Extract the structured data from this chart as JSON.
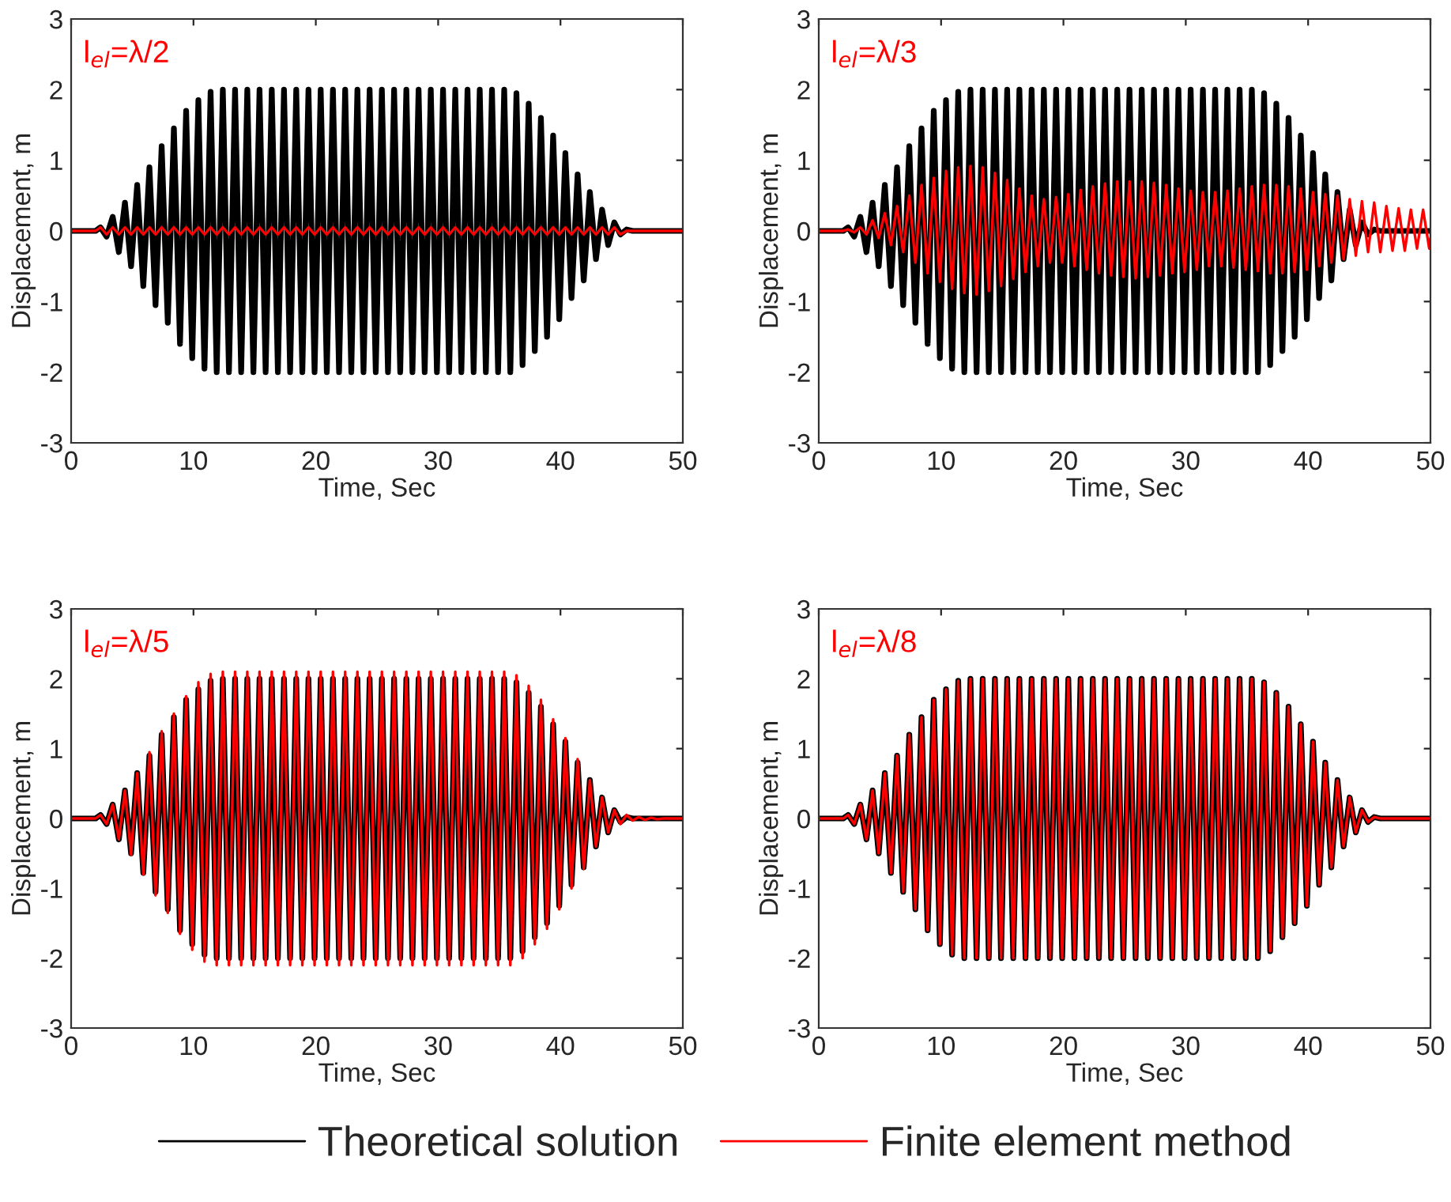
{
  "chart_data": [
    {
      "type": "line",
      "xlabel": "Time, Sec",
      "ylabel": "Displacement, m",
      "annotations": [
        "l$_{el}$=λ/2"
      ],
      "xlim": [
        0,
        50
      ],
      "ylim": [
        -3,
        3
      ],
      "xticks": [
        0,
        10,
        20,
        30,
        40,
        50
      ],
      "yticks": [
        -3,
        -2,
        -1,
        0,
        1,
        2,
        3
      ],
      "grid": false,
      "legend": "bottom",
      "marker": "none",
      "line_style": "solid",
      "x": [
        0,
        2,
        2.4,
        2.9,
        3.4,
        3.9,
        4.4,
        4.9,
        5.4,
        5.9,
        6.4,
        6.9,
        7.4,
        7.9,
        8.4,
        8.9,
        9.4,
        9.9,
        10.4,
        10.9,
        11.4,
        11.9,
        12.4,
        12.9,
        13.4,
        13.9,
        14.4,
        14.9,
        15.4,
        15.9,
        16.4,
        16.9,
        17.4,
        17.9,
        18.4,
        18.9,
        19.4,
        19.9,
        20.4,
        20.9,
        21.4,
        21.9,
        22.4,
        22.9,
        23.4,
        23.9,
        24.4,
        24.9,
        25.4,
        25.9,
        26.4,
        26.9,
        27.4,
        27.9,
        28.4,
        28.9,
        29.4,
        29.9,
        30.4,
        30.9,
        31.4,
        31.9,
        32.4,
        32.9,
        33.4,
        33.9,
        34.4,
        34.9,
        35.4,
        35.9,
        36.4,
        36.9,
        37.4,
        37.9,
        38.4,
        38.9,
        39.4,
        39.9,
        40.4,
        40.9,
        41.4,
        41.9,
        42.4,
        42.9,
        43.4,
        43.9,
        44.4,
        44.9,
        45.4,
        45.9,
        46.4,
        46.9,
        47.4,
        47.9,
        48.4,
        48.9,
        49.4,
        49.9,
        50
      ],
      "series": [
        {
          "name": "Theoretical solution",
          "color": "#000000",
          "values": [
            0,
            0,
            0.05,
            -0.08,
            0.2,
            -0.3,
            0.4,
            -0.5,
            0.65,
            -0.78,
            0.9,
            -1.05,
            1.2,
            -1.3,
            1.45,
            -1.6,
            1.7,
            -1.8,
            1.85,
            -1.95,
            1.97,
            -2,
            2,
            -2,
            2,
            -2,
            2,
            -2,
            2,
            -2,
            2,
            -2,
            2,
            -2,
            2,
            -2,
            2,
            -2,
            2,
            -2,
            2,
            -2,
            2,
            -2,
            2,
            -2,
            2,
            -2,
            2,
            -2,
            2,
            -2,
            2,
            -2,
            2,
            -2,
            2,
            -2,
            2,
            -2,
            2,
            -2,
            2,
            -2,
            2,
            -2,
            2,
            -2,
            2,
            -2,
            1.95,
            -1.9,
            1.8,
            -1.7,
            1.6,
            -1.5,
            1.35,
            -1.25,
            1.1,
            -0.95,
            0.8,
            -0.7,
            0.55,
            -0.4,
            0.3,
            -0.2,
            0.12,
            -0.05,
            0.02,
            0,
            0,
            0,
            0,
            0,
            0,
            0,
            0,
            0,
            0
          ]
        },
        {
          "name": "Finite element method",
          "color": "#ff0000",
          "values": [
            0,
            0,
            0.05,
            -0.05,
            0.05,
            -0.05,
            0.05,
            -0.05,
            0.05,
            -0.05,
            0.05,
            -0.05,
            0.05,
            -0.05,
            0.05,
            -0.05,
            0.05,
            -0.05,
            0.05,
            -0.05,
            0.05,
            -0.05,
            0.05,
            -0.05,
            0.05,
            -0.05,
            0.05,
            -0.05,
            0.05,
            -0.05,
            0.05,
            -0.05,
            0.05,
            -0.05,
            0.05,
            -0.05,
            0.05,
            -0.05,
            0.05,
            -0.05,
            0.05,
            -0.05,
            0.05,
            -0.05,
            0.05,
            -0.05,
            0.05,
            -0.05,
            0.05,
            -0.05,
            0.05,
            -0.05,
            0.05,
            -0.05,
            0.05,
            -0.05,
            0.05,
            -0.05,
            0.05,
            -0.05,
            0.05,
            -0.05,
            0.05,
            -0.05,
            0.05,
            -0.05,
            0.05,
            -0.05,
            0.05,
            -0.05,
            0.05,
            -0.05,
            0.05,
            -0.05,
            0.05,
            -0.05,
            0.05,
            -0.05,
            0.05,
            -0.05,
            0.05,
            -0.05,
            0.05,
            -0.05,
            0.05,
            -0.05,
            0.05,
            -0.05,
            0,
            0,
            0,
            0,
            0,
            0,
            0,
            0,
            0,
            0,
            0
          ]
        }
      ]
    },
    {
      "type": "line",
      "xlabel": "Time, Sec",
      "ylabel": "Displacement, m",
      "annotations": [
        "l$_{el}$=λ/3"
      ],
      "xlim": [
        0,
        50
      ],
      "ylim": [
        -3,
        3
      ],
      "xticks": [
        0,
        10,
        20,
        30,
        40,
        50
      ],
      "yticks": [
        -3,
        -2,
        -1,
        0,
        1,
        2,
        3
      ],
      "grid": false,
      "legend": "bottom",
      "marker": "none",
      "line_style": "solid",
      "x": [
        0,
        2,
        2.4,
        2.9,
        3.4,
        3.9,
        4.4,
        4.9,
        5.4,
        5.9,
        6.4,
        6.9,
        7.4,
        7.9,
        8.4,
        8.9,
        9.4,
        9.9,
        10.4,
        10.9,
        11.4,
        11.9,
        12.4,
        12.9,
        13.4,
        13.9,
        14.4,
        14.9,
        15.4,
        15.9,
        16.4,
        16.9,
        17.4,
        17.9,
        18.4,
        18.9,
        19.4,
        19.9,
        20.4,
        20.9,
        21.4,
        21.9,
        22.4,
        22.9,
        23.4,
        23.9,
        24.4,
        24.9,
        25.4,
        25.9,
        26.4,
        26.9,
        27.4,
        27.9,
        28.4,
        28.9,
        29.4,
        29.9,
        30.4,
        30.9,
        31.4,
        31.9,
        32.4,
        32.9,
        33.4,
        33.9,
        34.4,
        34.9,
        35.4,
        35.9,
        36.4,
        36.9,
        37.4,
        37.9,
        38.4,
        38.9,
        39.4,
        39.9,
        40.4,
        40.9,
        41.4,
        41.9,
        42.4,
        42.9,
        43.4,
        43.9,
        44.4,
        44.9,
        45.4,
        45.9,
        46.4,
        46.9,
        47.4,
        47.9,
        48.4,
        48.9,
        49.4,
        49.9,
        50
      ],
      "series": [
        {
          "color": "#000000",
          "values": [
            0,
            0,
            0.05,
            -0.08,
            0.2,
            -0.3,
            0.4,
            -0.5,
            0.65,
            -0.78,
            0.9,
            -1.05,
            1.2,
            -1.3,
            1.45,
            -1.6,
            1.7,
            -1.8,
            1.85,
            -1.95,
            1.97,
            -2,
            2,
            -2,
            2,
            -2,
            2,
            -2,
            2,
            -2,
            2,
            -2,
            2,
            -2,
            2,
            -2,
            2,
            -2,
            2,
            -2,
            2,
            -2,
            2,
            -2,
            2,
            -2,
            2,
            -2,
            2,
            -2,
            2,
            -2,
            2,
            -2,
            2,
            -2,
            2,
            -2,
            2,
            -2,
            2,
            -2,
            2,
            -2,
            2,
            -2,
            2,
            -2,
            2,
            -2,
            1.95,
            -1.9,
            1.8,
            -1.7,
            1.6,
            -1.5,
            1.35,
            -1.25,
            1.1,
            -0.95,
            0.8,
            -0.7,
            0.55,
            -0.4,
            0.3,
            -0.2,
            0.12,
            -0.05,
            0.02,
            0,
            0,
            0,
            0,
            0,
            0,
            0,
            0,
            0,
            0
          ]
        },
        {
          "color": "#ff0000",
          "values": [
            0,
            0,
            0.02,
            -0.02,
            0.05,
            -0.05,
            0.15,
            -0.1,
            0.25,
            -0.2,
            0.35,
            -0.3,
            0.5,
            -0.45,
            0.65,
            -0.6,
            0.75,
            -0.72,
            0.85,
            -0.82,
            0.9,
            -0.88,
            0.92,
            -0.9,
            0.9,
            -0.85,
            0.82,
            -0.78,
            0.72,
            -0.68,
            0.6,
            -0.58,
            0.5,
            -0.5,
            0.45,
            -0.45,
            0.48,
            -0.45,
            0.52,
            -0.5,
            0.58,
            -0.55,
            0.63,
            -0.6,
            0.67,
            -0.63,
            0.7,
            -0.65,
            0.7,
            -0.67,
            0.7,
            -0.65,
            0.68,
            -0.63,
            0.65,
            -0.6,
            0.6,
            -0.58,
            0.57,
            -0.55,
            0.55,
            -0.5,
            0.55,
            -0.5,
            0.57,
            -0.52,
            0.6,
            -0.55,
            0.63,
            -0.57,
            0.65,
            -0.6,
            0.65,
            -0.6,
            0.63,
            -0.58,
            0.6,
            -0.55,
            0.55,
            -0.5,
            0.52,
            -0.45,
            0.5,
            -0.4,
            0.45,
            -0.35,
            0.42,
            -0.3,
            0.4,
            -0.3,
            0.35,
            -0.28,
            0.32,
            -0.28,
            0.3,
            -0.25,
            0.3,
            -0.25,
            -0.1
          ]
        }
      ]
    },
    {
      "type": "line",
      "xlabel": "Time, Sec",
      "ylabel": "Displacement, m",
      "annotations": [
        "l$_{el}$=λ/5"
      ],
      "xlim": [
        0,
        50
      ],
      "ylim": [
        -3,
        3
      ],
      "xticks": [
        0,
        10,
        20,
        30,
        40,
        50
      ],
      "yticks": [
        -3,
        -2,
        -1,
        0,
        1,
        2,
        3
      ],
      "grid": false,
      "legend": "bottom",
      "marker": "none",
      "line_style": "solid",
      "x": [
        0,
        2,
        2.4,
        2.9,
        3.4,
        3.9,
        4.4,
        4.9,
        5.4,
        5.9,
        6.4,
        6.9,
        7.4,
        7.9,
        8.4,
        8.9,
        9.4,
        9.9,
        10.4,
        10.9,
        11.4,
        11.9,
        12.4,
        12.9,
        13.4,
        13.9,
        14.4,
        14.9,
        15.4,
        15.9,
        16.4,
        16.9,
        17.4,
        17.9,
        18.4,
        18.9,
        19.4,
        19.9,
        20.4,
        20.9,
        21.4,
        21.9,
        22.4,
        22.9,
        23.4,
        23.9,
        24.4,
        24.9,
        25.4,
        25.9,
        26.4,
        26.9,
        27.4,
        27.9,
        28.4,
        28.9,
        29.4,
        29.9,
        30.4,
        30.9,
        31.4,
        31.9,
        32.4,
        32.9,
        33.4,
        33.9,
        34.4,
        34.9,
        35.4,
        35.9,
        36.4,
        36.9,
        37.4,
        37.9,
        38.4,
        38.9,
        39.4,
        39.9,
        40.4,
        40.9,
        41.4,
        41.9,
        42.4,
        42.9,
        43.4,
        43.9,
        44.4,
        44.9,
        45.4,
        45.9,
        46.4,
        46.9,
        47.4,
        47.9,
        48.4,
        48.9,
        49.4,
        49.9,
        50
      ],
      "series": [
        {
          "color": "#000000",
          "values": [
            0,
            0,
            0.05,
            -0.08,
            0.2,
            -0.3,
            0.4,
            -0.5,
            0.65,
            -0.78,
            0.9,
            -1.05,
            1.2,
            -1.3,
            1.45,
            -1.6,
            1.7,
            -1.8,
            1.85,
            -1.95,
            1.97,
            -2,
            2,
            -2,
            2,
            -2,
            2,
            -2,
            2,
            -2,
            2,
            -2,
            2,
            -2,
            2,
            -2,
            2,
            -2,
            2,
            -2,
            2,
            -2,
            2,
            -2,
            2,
            -2,
            2,
            -2,
            2,
            -2,
            2,
            -2,
            2,
            -2,
            2,
            -2,
            2,
            -2,
            2,
            -2,
            2,
            -2,
            2,
            -2,
            2,
            -2,
            2,
            -2,
            2,
            -2,
            1.95,
            -1.9,
            1.8,
            -1.7,
            1.6,
            -1.5,
            1.35,
            -1.25,
            1.1,
            -0.95,
            0.8,
            -0.7,
            0.55,
            -0.4,
            0.3,
            -0.2,
            0.12,
            -0.05,
            0.02,
            0,
            0,
            0,
            0,
            0,
            0,
            0,
            0,
            0,
            0
          ]
        },
        {
          "color": "#ff0000",
          "values": [
            0,
            0,
            0.05,
            -0.08,
            0.2,
            -0.3,
            0.4,
            -0.52,
            0.65,
            -0.8,
            0.95,
            -1.1,
            1.25,
            -1.35,
            1.5,
            -1.65,
            1.75,
            -1.88,
            1.95,
            -2.05,
            2.07,
            -2.1,
            2.1,
            -2.1,
            2.1,
            -2.1,
            2.1,
            -2.1,
            2.1,
            -2.1,
            2.1,
            -2.1,
            2.1,
            -2.1,
            2.1,
            -2.1,
            2.1,
            -2.1,
            2.1,
            -2.1,
            2.1,
            -2.1,
            2.1,
            -2.1,
            2.1,
            -2.1,
            2.1,
            -2.1,
            2.1,
            -2.1,
            2.1,
            -2.1,
            2.1,
            -2.1,
            2.1,
            -2.1,
            2.1,
            -2.1,
            2.1,
            -2.1,
            2.1,
            -2.1,
            2.1,
            -2.1,
            2.1,
            -2.1,
            2.1,
            -2.1,
            2.1,
            -2.1,
            2.05,
            -2,
            1.9,
            -1.8,
            1.7,
            -1.58,
            1.42,
            -1.3,
            1.15,
            -1,
            0.85,
            -0.72,
            0.55,
            -0.4,
            0.3,
            -0.2,
            0.12,
            -0.08,
            0.05,
            -0.03,
            0.02,
            -0.02,
            0.01,
            -0.01,
            0,
            0,
            0,
            0,
            0
          ]
        }
      ]
    },
    {
      "type": "line",
      "xlabel": "Time, Sec",
      "ylabel": "Displacement, m",
      "annotations": [
        "l$_{el}$=λ/8"
      ],
      "xlim": [
        0,
        50
      ],
      "ylim": [
        -3,
        3
      ],
      "xticks": [
        0,
        10,
        20,
        30,
        40,
        50
      ],
      "yticks": [
        -3,
        -2,
        -1,
        0,
        1,
        2,
        3
      ],
      "grid": false,
      "legend": "bottom",
      "marker": "none",
      "line_style": "solid",
      "x": [
        0,
        2,
        2.4,
        2.9,
        3.4,
        3.9,
        4.4,
        4.9,
        5.4,
        5.9,
        6.4,
        6.9,
        7.4,
        7.9,
        8.4,
        8.9,
        9.4,
        9.9,
        10.4,
        10.9,
        11.4,
        11.9,
        12.4,
        12.9,
        13.4,
        13.9,
        14.4,
        14.9,
        15.4,
        15.9,
        16.4,
        16.9,
        17.4,
        17.9,
        18.4,
        18.9,
        19.4,
        19.9,
        20.4,
        20.9,
        21.4,
        21.9,
        22.4,
        22.9,
        23.4,
        23.9,
        24.4,
        24.9,
        25.4,
        25.9,
        26.4,
        26.9,
        27.4,
        27.9,
        28.4,
        28.9,
        29.4,
        29.9,
        30.4,
        30.9,
        31.4,
        31.9,
        32.4,
        32.9,
        33.4,
        33.9,
        34.4,
        34.9,
        35.4,
        35.9,
        36.4,
        36.9,
        37.4,
        37.9,
        38.4,
        38.9,
        39.4,
        39.9,
        40.4,
        40.9,
        41.4,
        41.9,
        42.4,
        42.9,
        43.4,
        43.9,
        44.4,
        44.9,
        45.4,
        45.9,
        46.4,
        46.9,
        47.4,
        47.9,
        48.4,
        48.9,
        49.4,
        49.9,
        50
      ],
      "series": [
        {
          "color": "#000000",
          "values": [
            0,
            0,
            0.05,
            -0.08,
            0.2,
            -0.3,
            0.4,
            -0.5,
            0.65,
            -0.78,
            0.9,
            -1.05,
            1.2,
            -1.3,
            1.45,
            -1.6,
            1.7,
            -1.8,
            1.85,
            -1.95,
            1.97,
            -2,
            2,
            -2,
            2,
            -2,
            2,
            -2,
            2,
            -2,
            2,
            -2,
            2,
            -2,
            2,
            -2,
            2,
            -2,
            2,
            -2,
            2,
            -2,
            2,
            -2,
            2,
            -2,
            2,
            -2,
            2,
            -2,
            2,
            -2,
            2,
            -2,
            2,
            -2,
            2,
            -2,
            2,
            -2,
            2,
            -2,
            2,
            -2,
            2,
            -2,
            2,
            -2,
            2,
            -2,
            1.95,
            -1.9,
            1.8,
            -1.7,
            1.6,
            -1.5,
            1.35,
            -1.25,
            1.1,
            -0.95,
            0.8,
            -0.7,
            0.55,
            -0.4,
            0.3,
            -0.2,
            0.12,
            -0.05,
            0.02,
            0,
            0,
            0,
            0,
            0,
            0,
            0,
            0,
            0,
            0
          ]
        },
        {
          "color": "#ff0000",
          "values": [
            0,
            0,
            0.05,
            -0.08,
            0.2,
            -0.3,
            0.4,
            -0.5,
            0.65,
            -0.78,
            0.9,
            -1.05,
            1.2,
            -1.3,
            1.45,
            -1.6,
            1.7,
            -1.8,
            1.85,
            -1.95,
            1.97,
            -2,
            2,
            -2,
            2,
            -2,
            2,
            -2,
            2,
            -2,
            2,
            -2,
            2,
            -2,
            2,
            -2,
            2,
            -2,
            2,
            -2,
            2,
            -2,
            2,
            -2,
            2,
            -2,
            2,
            -2,
            2,
            -2,
            2,
            -2,
            2,
            -2,
            2,
            -2,
            2,
            -2,
            2,
            -2,
            2,
            -2,
            2,
            -2,
            2,
            -2,
            2,
            -2,
            2,
            -2,
            1.95,
            -1.9,
            1.8,
            -1.7,
            1.6,
            -1.5,
            1.35,
            -1.25,
            1.1,
            -0.95,
            0.8,
            -0.7,
            0.55,
            -0.4,
            0.3,
            -0.2,
            0.12,
            -0.05,
            0.02,
            0,
            0,
            0,
            0,
            0,
            0,
            0,
            0,
            0,
            0
          ]
        }
      ]
    }
  ]
}
